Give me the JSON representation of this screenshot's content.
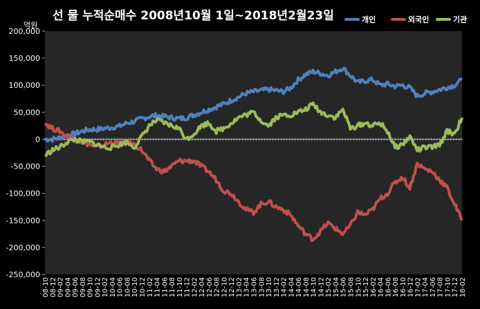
{
  "title": "선 물 누적순매수 2008년10월 1일~2018년2월23일",
  "unit_label": "억원",
  "chart_data": {
    "type": "line",
    "title": "선 물 누적순매수 2008년10월 1일~2018년2월23일",
    "ylabel": "억원",
    "xlabel": "",
    "ylim": [
      -250000,
      200000
    ],
    "y_ticks": [
      200000,
      150000,
      100000,
      50000,
      0,
      -50000,
      -100000,
      -150000,
      -200000,
      -250000
    ],
    "y_tick_labels": [
      "200,000",
      "150,000",
      "100,000",
      "50,000",
      "0",
      "-50,000",
      "-100,000",
      "-150,000",
      "-200,000",
      "-250,000"
    ],
    "categories": [
      "08-10",
      "08-12",
      "09-02",
      "09-04",
      "09-06",
      "09-08",
      "09-10",
      "09-12",
      "10-02",
      "10-04",
      "10-06",
      "10-08",
      "10-10",
      "10-12",
      "11-02",
      "11-04",
      "11-06",
      "11-08",
      "11-10",
      "11-12",
      "12-02",
      "12-04",
      "12-06",
      "12-08",
      "12-10",
      "12-12",
      "13-02",
      "13-04",
      "13-06",
      "13-08",
      "13-10",
      "13-12",
      "14-02",
      "14-04",
      "14-06",
      "14-08",
      "14-10",
      "14-12",
      "15-02",
      "15-04",
      "15-06",
      "15-08",
      "15-10",
      "15-12",
      "16-02",
      "16-04",
      "16-06",
      "16-08",
      "16-10",
      "16-12",
      "17-02",
      "17-04",
      "17-06",
      "17-08",
      "17-10",
      "17-12",
      "18-02"
    ],
    "grid": false,
    "legend_position": "top-right",
    "series": [
      {
        "name": "개인",
        "color": "#4f81bd",
        "values": [
          0,
          0,
          3000,
          8000,
          10000,
          15000,
          18000,
          18000,
          20000,
          22000,
          24000,
          30000,
          33000,
          38000,
          42000,
          44000,
          42000,
          40000,
          38000,
          40000,
          45000,
          50000,
          55000,
          60000,
          65000,
          72000,
          78000,
          85000,
          88000,
          90000,
          92000,
          90000,
          88000,
          95000,
          110000,
          120000,
          125000,
          122000,
          118000,
          125000,
          132000,
          118000,
          105000,
          108000,
          110000,
          100000,
          102000,
          98000,
          100000,
          95000,
          80000,
          85000,
          88000,
          92000,
          96000,
          100000,
          110000
        ]
      },
      {
        "name": "외국인",
        "color": "#c0504d",
        "values": [
          30000,
          20000,
          15000,
          5000,
          0,
          -5000,
          -10000,
          -15000,
          -10000,
          -5000,
          -8000,
          -5000,
          -10000,
          -20000,
          -40000,
          -55000,
          -60000,
          -50000,
          -40000,
          -40000,
          -40000,
          -50000,
          -60000,
          -75000,
          -95000,
          -100000,
          -115000,
          -130000,
          -135000,
          -120000,
          -115000,
          -125000,
          -130000,
          -140000,
          -160000,
          -175000,
          -185000,
          -170000,
          -155000,
          -165000,
          -175000,
          -160000,
          -135000,
          -140000,
          -130000,
          -110000,
          -100000,
          -80000,
          -70000,
          -90000,
          -45000,
          -55000,
          -60000,
          -75000,
          -90000,
          -120000,
          -150000
        ]
      },
      {
        "name": "기관",
        "color": "#9bbb59",
        "values": [
          -30000,
          -20000,
          -15000,
          -5000,
          0,
          -5000,
          -5000,
          -10000,
          -15000,
          -15000,
          -10000,
          -5000,
          -15000,
          5000,
          25000,
          35000,
          30000,
          25000,
          20000,
          0,
          10000,
          25000,
          30000,
          15000,
          20000,
          30000,
          40000,
          45000,
          50000,
          35000,
          25000,
          40000,
          45000,
          45000,
          50000,
          55000,
          65000,
          50000,
          45000,
          40000,
          55000,
          20000,
          25000,
          30000,
          25000,
          30000,
          15000,
          -15000,
          -10000,
          5000,
          -20000,
          -15000,
          -15000,
          -10000,
          15000,
          10000,
          40000
        ]
      }
    ]
  }
}
